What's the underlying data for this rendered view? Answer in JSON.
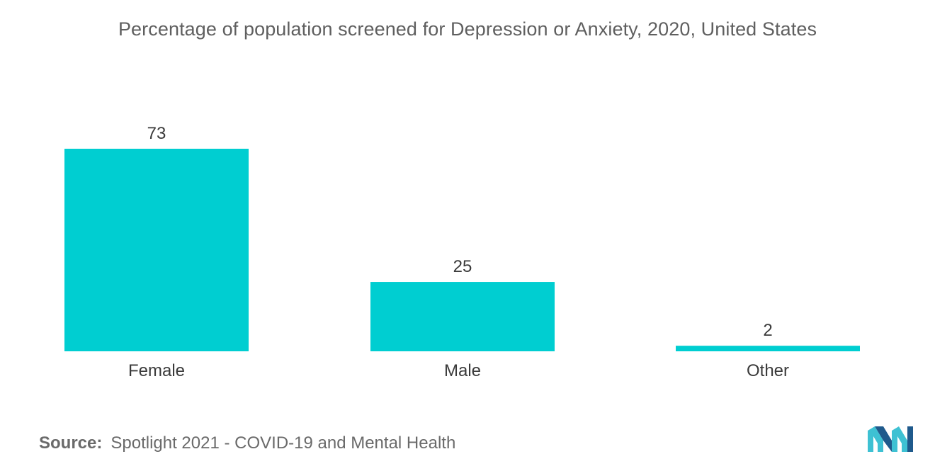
{
  "title": "Percentage of population screened for Depression or Anxiety, 2020, United States",
  "source_label": "Source:",
  "source_text": "Spotlight 2021 - COVID-19 and Mental Health",
  "logo_icon": "mordor-intelligence-logo-icon",
  "colors": {
    "bar": "#00ced1",
    "text": "#3a3a3a",
    "logo_dark": "#1f5a8c",
    "logo_light": "#3ec1d3"
  },
  "chart_data": {
    "type": "bar",
    "categories": [
      "Female",
      "Male",
      "Other"
    ],
    "values": [
      73,
      25,
      2
    ],
    "data_labels": [
      "73",
      "25",
      "2"
    ],
    "title": "Percentage of population screened for Depression or Anxiety, 2020, United States",
    "xlabel": "",
    "ylabel": "",
    "ylim": [
      0,
      73
    ],
    "grid": false,
    "legend": "none"
  }
}
